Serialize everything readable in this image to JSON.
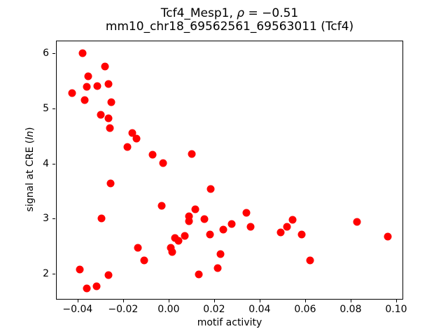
{
  "figure": {
    "title_line1": {
      "prefix": "Tcf4_Mesp1, ",
      "rho": "ρ",
      "rest": " = −0.51"
    },
    "title_line2": "mm10_chr18_69562561_69563011 (Tcf4)",
    "xlabel": "motif activity",
    "ylabel": {
      "prefix": "signal at CRE (",
      "italic": "ln",
      "suffix": ")"
    }
  },
  "chart_data": {
    "type": "scatter",
    "title": "Tcf4_Mesp1, ρ = −0.51",
    "subtitle": "mm10_chr18_69562561_69563011 (Tcf4)",
    "correlation_rho": -0.51,
    "xlabel": "motif activity",
    "ylabel": "signal at CRE (ln)",
    "marker_color": "#ff0000",
    "marker_shape": "circle",
    "grid": false,
    "legend": false,
    "xlim": [
      -0.0495,
      0.1031
    ],
    "ylim": [
      1.53,
      6.23
    ],
    "xticks": {
      "values": [
        -0.04,
        -0.02,
        0.0,
        0.02,
        0.04,
        0.06,
        0.08,
        0.1
      ],
      "labels": [
        "−0.04",
        "−0.02",
        "0.00",
        "0.02",
        "0.04",
        "0.06",
        "0.08",
        "0.10"
      ]
    },
    "yticks": {
      "values": [
        2,
        3,
        4,
        5,
        6
      ],
      "labels": [
        "2",
        "3",
        "4",
        "5",
        "6"
      ]
    },
    "points": [
      [
        -0.0382,
        6.02
      ],
      [
        -0.0283,
        5.77
      ],
      [
        -0.0356,
        5.59
      ],
      [
        -0.0363,
        5.41
      ],
      [
        -0.0317,
        5.42
      ],
      [
        -0.0266,
        5.46
      ],
      [
        -0.0426,
        5.29
      ],
      [
        -0.0373,
        5.16
      ],
      [
        -0.0255,
        5.13
      ],
      [
        -0.0302,
        4.9
      ],
      [
        -0.0268,
        4.83
      ],
      [
        -0.0262,
        4.65
      ],
      [
        -0.0162,
        4.57
      ],
      [
        -0.0145,
        4.46
      ],
      [
        -0.0185,
        4.31
      ],
      [
        -0.0075,
        4.17
      ],
      [
        -0.0027,
        4.02
      ],
      [
        0.0099,
        4.19
      ],
      [
        -0.0258,
        3.65
      ],
      [
        0.0182,
        3.55
      ],
      [
        -0.0034,
        3.25
      ],
      [
        0.0113,
        3.18
      ],
      [
        -0.0298,
        3.02
      ],
      [
        0.0087,
        3.06
      ],
      [
        0.0087,
        2.96
      ],
      [
        0.0153,
        3.0
      ],
      [
        0.0275,
        2.92
      ],
      [
        0.0338,
        3.12
      ],
      [
        0.0358,
        2.86
      ],
      [
        0.0489,
        2.76
      ],
      [
        0.0517,
        2.86
      ],
      [
        0.0543,
        2.99
      ],
      [
        0.0582,
        2.73
      ],
      [
        0.0619,
        2.26
      ],
      [
        0.0826,
        2.95
      ],
      [
        0.0961,
        2.69
      ],
      [
        0.0179,
        2.73
      ],
      [
        0.0238,
        2.81
      ],
      [
        0.0025,
        2.66
      ],
      [
        0.004,
        2.61
      ],
      [
        0.0069,
        2.7
      ],
      [
        0.0007,
        2.48
      ],
      [
        0.0014,
        2.41
      ],
      [
        -0.0139,
        2.48
      ],
      [
        -0.0111,
        2.25
      ],
      [
        0.0226,
        2.37
      ],
      [
        -0.0393,
        2.09
      ],
      [
        -0.0268,
        1.99
      ],
      [
        -0.0362,
        1.75
      ],
      [
        -0.0321,
        1.79
      ],
      [
        0.013,
        2.0
      ],
      [
        0.0212,
        2.12
      ]
    ]
  }
}
